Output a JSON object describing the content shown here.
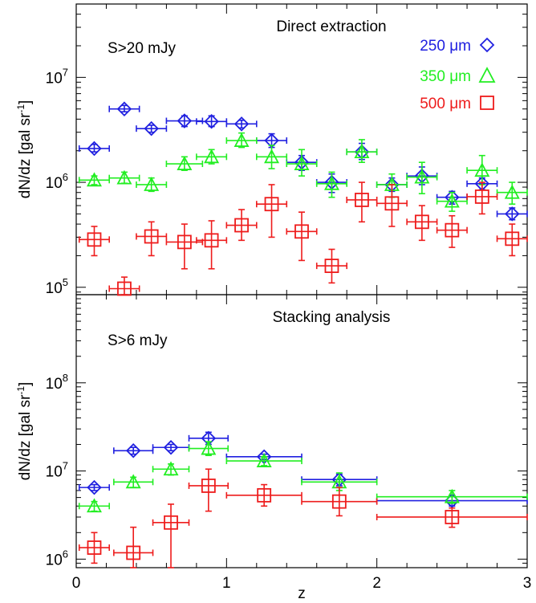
{
  "colors": {
    "250": "#2020e0",
    "350": "#22ee22",
    "500": "#ee1c1c"
  },
  "chart_data": [
    {
      "type": "scatter",
      "title": "Direct extraction",
      "annotation": "S>20 mJy",
      "ylabel_main": "dN/dz [gal sr",
      "ylabel_exp": "-1",
      "ylabel_close": "]",
      "xlabel": "",
      "xlim": [
        0,
        3
      ],
      "ylim": [
        85000,
        50000000
      ],
      "log_y": true,
      "x_ticks": [
        "0",
        "1",
        "2",
        "3"
      ],
      "y_ticks": [
        {
          "base": "10",
          "exp": "5"
        },
        {
          "base": "10",
          "exp": "6"
        },
        {
          "base": "10",
          "exp": "7"
        }
      ],
      "legend_position": "top-right",
      "series": [
        {
          "name": "250 μm",
          "marker": "diamond",
          "color_key": "250",
          "points": [
            {
              "x": 0.12,
              "y": 2100000,
              "xerr": 0.1,
              "ylo": 1950000,
              "yhi": 2300000
            },
            {
              "x": 0.32,
              "y": 5000000,
              "xerr": 0.1,
              "ylo": 4700000,
              "yhi": 5400000
            },
            {
              "x": 0.5,
              "y": 3250000,
              "xerr": 0.1,
              "ylo": 3000000,
              "yhi": 3500000
            },
            {
              "x": 0.72,
              "y": 3850000,
              "xerr": 0.12,
              "ylo": 3400000,
              "yhi": 4300000
            },
            {
              "x": 0.9,
              "y": 3800000,
              "xerr": 0.1,
              "ylo": 3400000,
              "yhi": 4300000
            },
            {
              "x": 1.1,
              "y": 3600000,
              "xerr": 0.1,
              "ylo": 3300000,
              "yhi": 3900000
            },
            {
              "x": 1.3,
              "y": 2500000,
              "xerr": 0.1,
              "ylo": 2150000,
              "yhi": 2900000
            },
            {
              "x": 1.5,
              "y": 1550000,
              "xerr": 0.1,
              "ylo": 1300000,
              "yhi": 1800000
            },
            {
              "x": 1.7,
              "y": 1000000,
              "xerr": 0.1,
              "ylo": 800000,
              "yhi": 1200000
            },
            {
              "x": 1.9,
              "y": 1950000,
              "xerr": 0.1,
              "ylo": 1650000,
              "yhi": 2350000
            },
            {
              "x": 2.1,
              "y": 950000,
              "xerr": 0.1,
              "ylo": 820000,
              "yhi": 1100000
            },
            {
              "x": 2.3,
              "y": 1150000,
              "xerr": 0.1,
              "ylo": 950000,
              "yhi": 1400000
            },
            {
              "x": 2.5,
              "y": 720000,
              "xerr": 0.1,
              "ylo": 620000,
              "yhi": 820000
            },
            {
              "x": 2.7,
              "y": 970000,
              "xerr": 0.1,
              "ylo": 850000,
              "yhi": 1100000
            },
            {
              "x": 2.9,
              "y": 500000,
              "xerr": 0.1,
              "ylo": 440000,
              "yhi": 570000
            }
          ]
        },
        {
          "name": "350 μm",
          "marker": "triangle",
          "color_key": "350",
          "points": [
            {
              "x": 0.12,
              "y": 1050000,
              "xerr": 0.1,
              "ylo": 950000,
              "yhi": 1150000
            },
            {
              "x": 0.32,
              "y": 1100000,
              "xerr": 0.1,
              "ylo": 980000,
              "yhi": 1250000
            },
            {
              "x": 0.5,
              "y": 950000,
              "xerr": 0.1,
              "ylo": 820000,
              "yhi": 1100000
            },
            {
              "x": 0.72,
              "y": 1500000,
              "xerr": 0.12,
              "ylo": 1300000,
              "yhi": 1750000
            },
            {
              "x": 0.9,
              "y": 1750000,
              "xerr": 0.1,
              "ylo": 1500000,
              "yhi": 2050000
            },
            {
              "x": 1.1,
              "y": 2500000,
              "xerr": 0.1,
              "ylo": 2150000,
              "yhi": 2950000
            },
            {
              "x": 1.3,
              "y": 1750000,
              "xerr": 0.1,
              "ylo": 1350000,
              "yhi": 2250000
            },
            {
              "x": 1.5,
              "y": 1500000,
              "xerr": 0.1,
              "ylo": 1150000,
              "yhi": 2050000
            },
            {
              "x": 1.7,
              "y": 970000,
              "xerr": 0.1,
              "ylo": 720000,
              "yhi": 1250000
            },
            {
              "x": 1.9,
              "y": 1950000,
              "xerr": 0.1,
              "ylo": 1550000,
              "yhi": 2550000
            },
            {
              "x": 2.1,
              "y": 950000,
              "xerr": 0.1,
              "ylo": 720000,
              "yhi": 1200000
            },
            {
              "x": 2.3,
              "y": 1120000,
              "xerr": 0.1,
              "ylo": 780000,
              "yhi": 1550000
            },
            {
              "x": 2.5,
              "y": 660000,
              "xerr": 0.1,
              "ylo": 530000,
              "yhi": 800000
            },
            {
              "x": 2.7,
              "y": 1300000,
              "xerr": 0.1,
              "ylo": 950000,
              "yhi": 1800000
            },
            {
              "x": 2.9,
              "y": 800000,
              "xerr": 0.1,
              "ylo": 620000,
              "yhi": 1000000
            }
          ]
        },
        {
          "name": "500 μm",
          "marker": "square",
          "color_key": "500",
          "points": [
            {
              "x": 0.12,
              "y": 285000,
              "xerr": 0.1,
              "ylo": 200000,
              "yhi": 380000
            },
            {
              "x": 0.32,
              "y": 97000,
              "xerr": 0.1,
              "ylo": 85000,
              "yhi": 125000
            },
            {
              "x": 0.5,
              "y": 305000,
              "xerr": 0.1,
              "ylo": 200000,
              "yhi": 420000
            },
            {
              "x": 0.72,
              "y": 270000,
              "xerr": 0.12,
              "ylo": 150000,
              "yhi": 400000
            },
            {
              "x": 0.9,
              "y": 280000,
              "xerr": 0.1,
              "ylo": 150000,
              "yhi": 430000
            },
            {
              "x": 1.1,
              "y": 390000,
              "xerr": 0.1,
              "ylo": 280000,
              "yhi": 550000
            },
            {
              "x": 1.3,
              "y": 620000,
              "xerr": 0.1,
              "ylo": 300000,
              "yhi": 950000
            },
            {
              "x": 1.5,
              "y": 340000,
              "xerr": 0.1,
              "ylo": 180000,
              "yhi": 520000
            },
            {
              "x": 1.7,
              "y": 160000,
              "xerr": 0.1,
              "ylo": 110000,
              "yhi": 230000
            },
            {
              "x": 1.9,
              "y": 680000,
              "xerr": 0.1,
              "ylo": 420000,
              "yhi": 1000000
            },
            {
              "x": 2.1,
              "y": 630000,
              "xerr": 0.1,
              "ylo": 380000,
              "yhi": 950000
            },
            {
              "x": 2.3,
              "y": 420000,
              "xerr": 0.1,
              "ylo": 280000,
              "yhi": 600000
            },
            {
              "x": 2.5,
              "y": 350000,
              "xerr": 0.1,
              "ylo": 240000,
              "yhi": 480000
            },
            {
              "x": 2.7,
              "y": 730000,
              "xerr": 0.1,
              "ylo": 500000,
              "yhi": 1000000
            },
            {
              "x": 2.9,
              "y": 290000,
              "xerr": 0.1,
              "ylo": 200000,
              "yhi": 400000
            }
          ]
        }
      ]
    },
    {
      "type": "scatter",
      "title": "Stacking analysis",
      "annotation": "S>6 mJy",
      "ylabel_main": "dN/dz [gal sr",
      "ylabel_exp": "-1",
      "ylabel_close": "]",
      "xlabel": "z",
      "xlim": [
        0,
        3
      ],
      "ylim": [
        800000,
        1000000000
      ],
      "log_y": true,
      "x_ticks": [
        "0",
        "1",
        "2",
        "3"
      ],
      "y_ticks": [
        {
          "base": "10",
          "exp": "6"
        },
        {
          "base": "10",
          "exp": "7"
        },
        {
          "base": "10",
          "exp": "8"
        }
      ],
      "series": [
        {
          "name": "250 μm",
          "marker": "diamond",
          "color_key": "250",
          "points": [
            {
              "x": 0.12,
              "y": 6500000,
              "xerr": 0.1,
              "ylo": 6000000,
              "yhi": 7000000
            },
            {
              "x": 0.38,
              "y": 17000000,
              "xerr": 0.13,
              "ylo": 15500000,
              "yhi": 18500000
            },
            {
              "x": 0.63,
              "y": 18500000,
              "xerr": 0.12,
              "ylo": 17000000,
              "yhi": 20000000
            },
            {
              "x": 0.88,
              "y": 23500000,
              "xerr": 0.13,
              "ylo": 20000000,
              "yhi": 27500000
            },
            {
              "x": 1.25,
              "y": 14500000,
              "xerr": 0.25,
              "ylo": 13500000,
              "yhi": 15500000
            },
            {
              "x": 1.75,
              "y": 8000000,
              "xerr": 0.25,
              "ylo": 6800000,
              "yhi": 9200000
            },
            {
              "x": 2.5,
              "y": 4600000,
              "xerr": 0.5,
              "ylo": 4000000,
              "yhi": 5300000
            }
          ]
        },
        {
          "name": "350 μm",
          "marker": "triangle",
          "color_key": "350",
          "points": [
            {
              "x": 0.12,
              "y": 4000000,
              "xerr": 0.1,
              "ylo": 3500000,
              "yhi": 4500000
            },
            {
              "x": 0.38,
              "y": 7500000,
              "xerr": 0.13,
              "ylo": 6500000,
              "yhi": 8500000
            },
            {
              "x": 0.63,
              "y": 10500000,
              "xerr": 0.12,
              "ylo": 9000000,
              "yhi": 12000000
            },
            {
              "x": 0.88,
              "y": 18000000,
              "xerr": 0.13,
              "ylo": 15000000,
              "yhi": 21500000
            },
            {
              "x": 1.25,
              "y": 13000000,
              "xerr": 0.25,
              "ylo": 11500000,
              "yhi": 14500000
            },
            {
              "x": 1.75,
              "y": 7500000,
              "xerr": 0.25,
              "ylo": 6000000,
              "yhi": 9500000
            },
            {
              "x": 2.5,
              "y": 5100000,
              "xerr": 0.5,
              "ylo": 4300000,
              "yhi": 6000000
            }
          ]
        },
        {
          "name": "500 μm",
          "marker": "square",
          "color_key": "500",
          "points": [
            {
              "x": 0.12,
              "y": 1350000,
              "xerr": 0.1,
              "ylo": 900000,
              "yhi": 2000000
            },
            {
              "x": 0.38,
              "y": 1180000,
              "xerr": 0.13,
              "ylo": 600000,
              "yhi": 2300000
            },
            {
              "x": 0.63,
              "y": 2600000,
              "xerr": 0.12,
              "ylo": 800000,
              "yhi": 4200000
            },
            {
              "x": 0.88,
              "y": 6800000,
              "xerr": 0.13,
              "ylo": 3500000,
              "yhi": 10500000
            },
            {
              "x": 1.25,
              "y": 5300000,
              "xerr": 0.25,
              "ylo": 4000000,
              "yhi": 7000000
            },
            {
              "x": 1.75,
              "y": 4500000,
              "xerr": 0.25,
              "ylo": 3100000,
              "yhi": 6500000
            },
            {
              "x": 2.5,
              "y": 3000000,
              "xerr": 0.5,
              "ylo": 2300000,
              "yhi": 3800000
            }
          ]
        }
      ]
    }
  ]
}
